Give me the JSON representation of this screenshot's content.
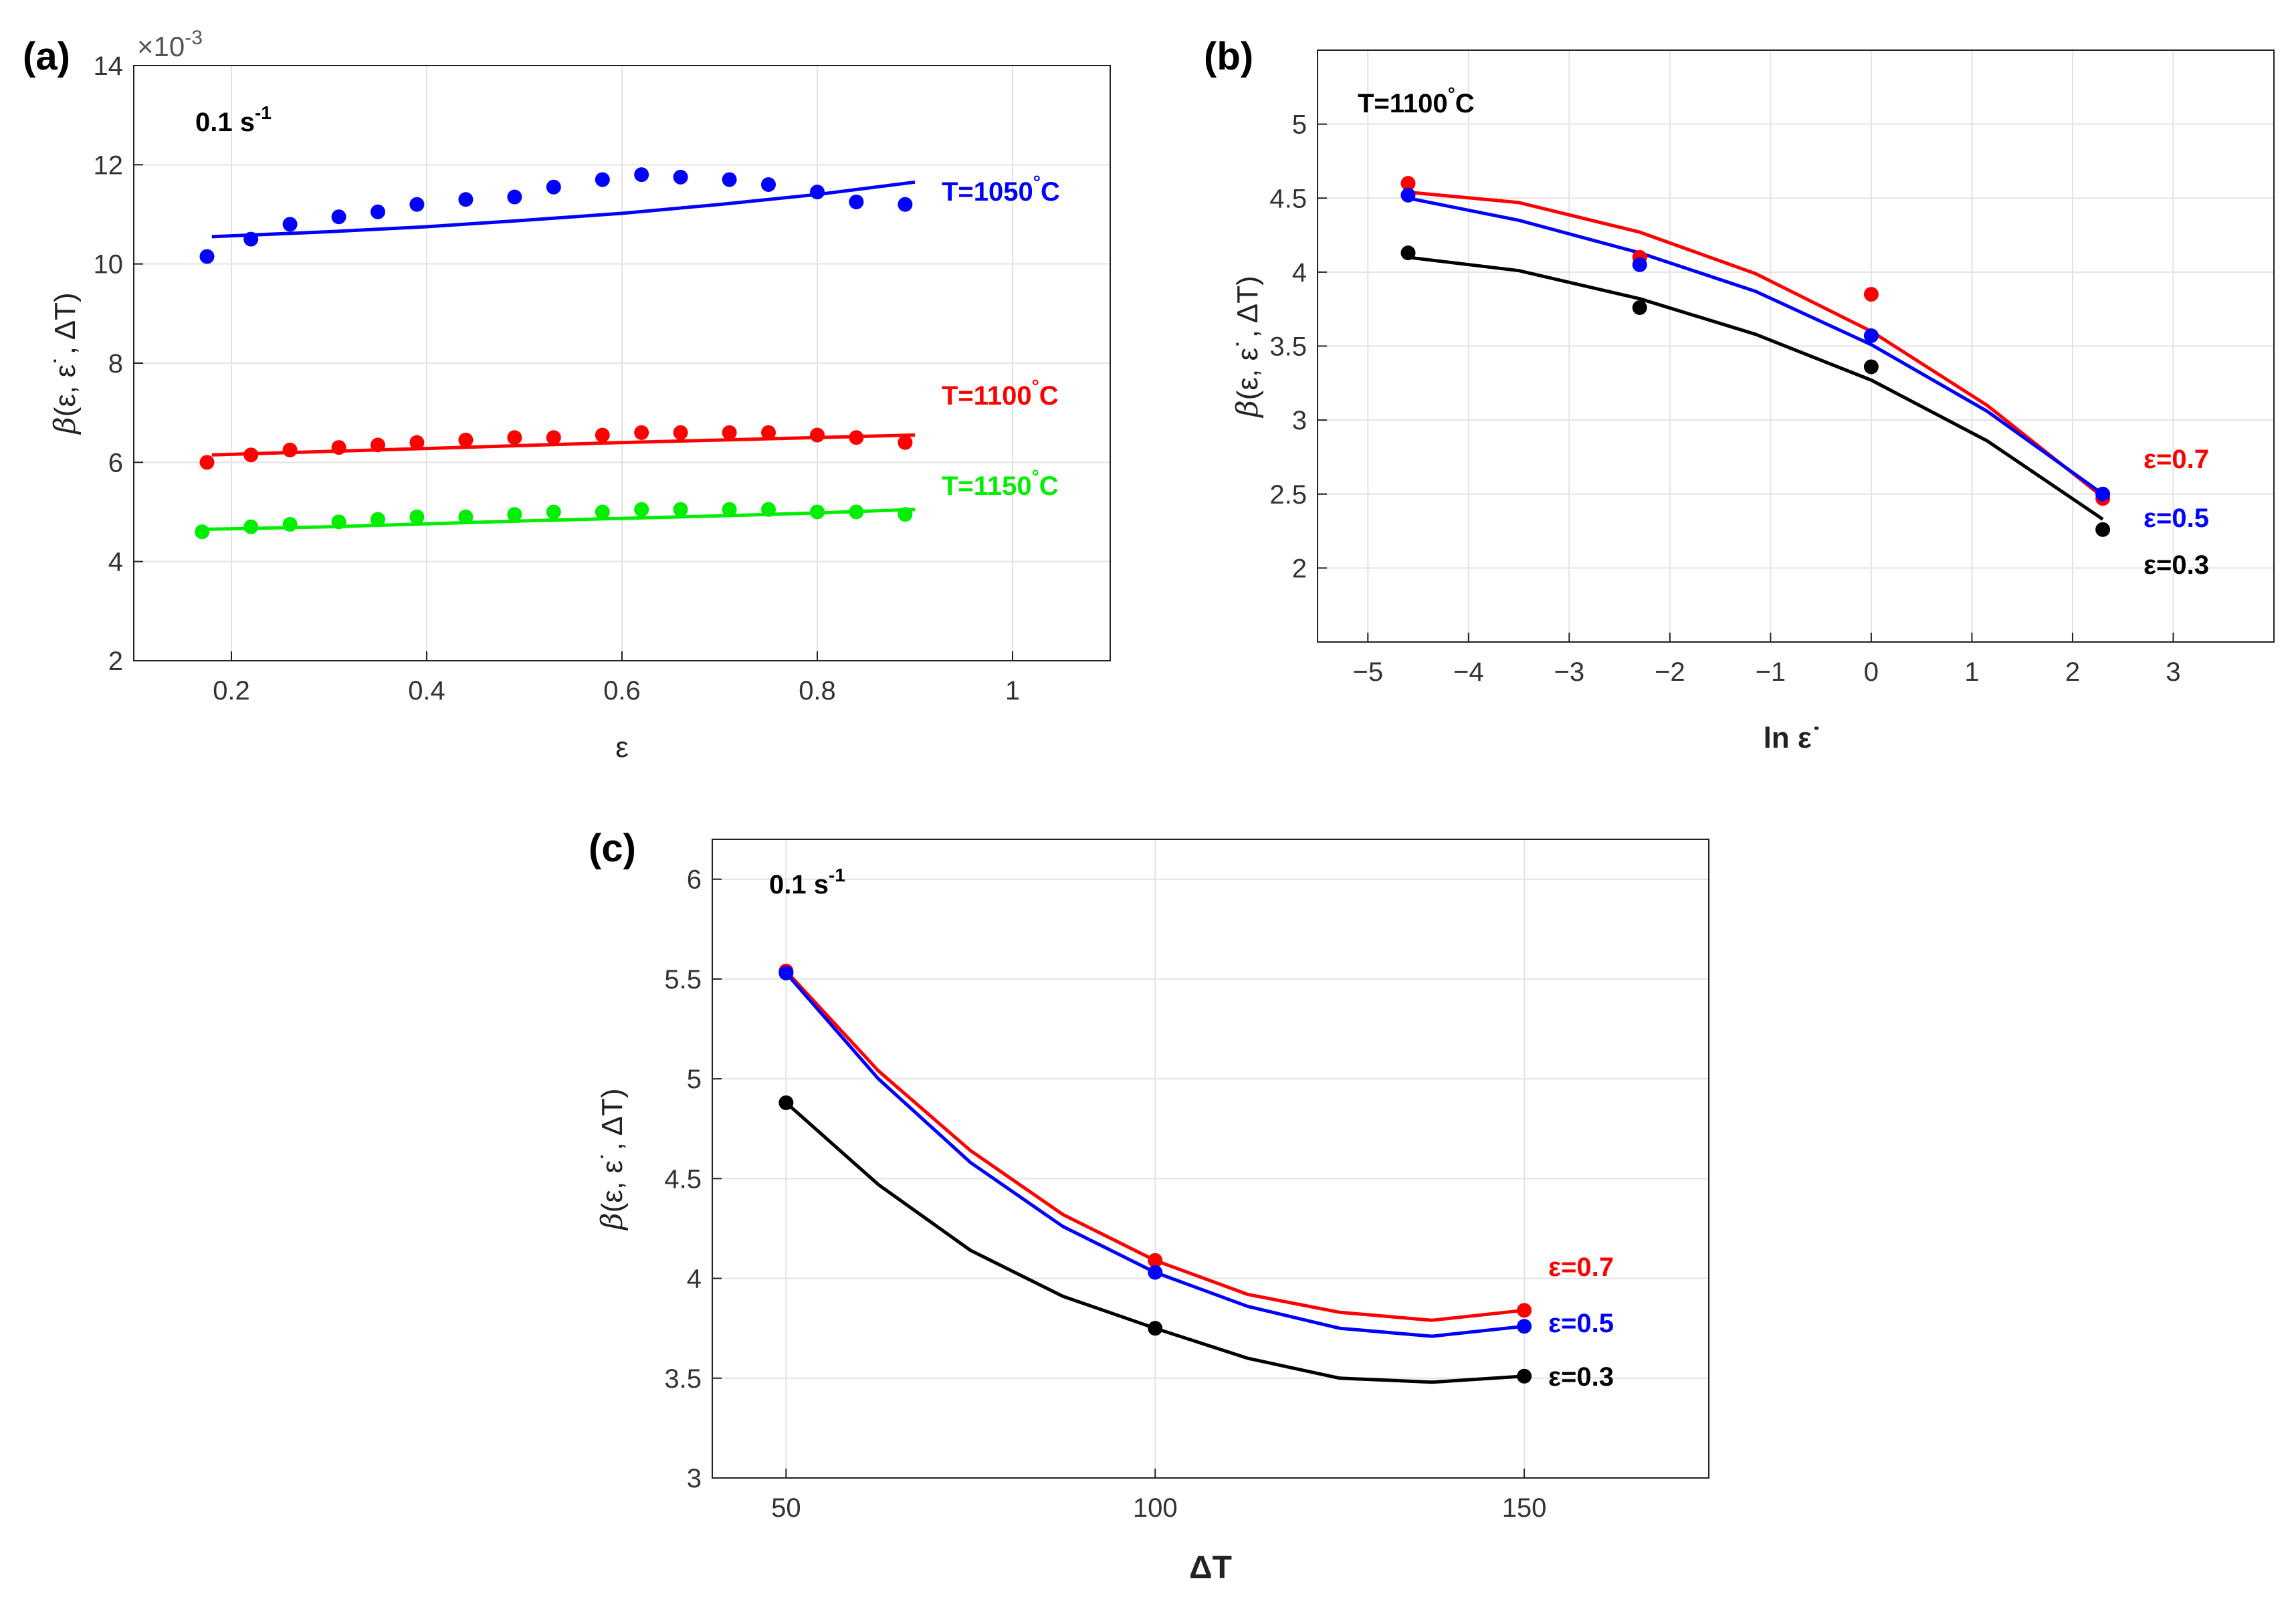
{
  "chart_data": [
    {
      "id": "a",
      "type": "scatter",
      "panel_label": "(a)",
      "rate_label": "0.1 s",
      "rate_exp": "-1",
      "xlabel": "ε",
      "ylabel_beta": "β",
      "ylabel_rest": "(ε, ε˙, ΔT)",
      "exponent_label": "×10",
      "exponent_power": "-3",
      "xlim": [
        0.1,
        1.1
      ],
      "ylim": [
        2,
        14
      ],
      "xticks": [
        0.2,
        0.4,
        0.6,
        0.8,
        1
      ],
      "xtick_labels": [
        "0.2",
        "0.4",
        "0.6",
        "0.8",
        "1"
      ],
      "yticks": [
        2,
        4,
        6,
        8,
        10,
        12,
        14
      ],
      "ytick_labels": [
        "2",
        "4",
        "6",
        "8",
        "10",
        "12",
        "14"
      ],
      "series": [
        {
          "name": "T=1050°C",
          "label_main": "T=1050",
          "label_unit": "C",
          "color": "#0000ff",
          "x": [
            0.175,
            0.22,
            0.26,
            0.31,
            0.35,
            0.39,
            0.44,
            0.49,
            0.53,
            0.58,
            0.62,
            0.66,
            0.71,
            0.75,
            0.8,
            0.84,
            0.89
          ],
          "y": [
            10.15,
            10.5,
            10.8,
            10.95,
            11.05,
            11.2,
            11.3,
            11.35,
            11.55,
            11.7,
            11.8,
            11.75,
            11.7,
            11.6,
            11.45,
            11.25,
            11.2
          ],
          "fit_x": [
            0.18,
            0.3,
            0.4,
            0.5,
            0.6,
            0.7,
            0.8,
            0.9
          ],
          "fit_y": [
            10.55,
            10.65,
            10.75,
            10.88,
            11.02,
            11.2,
            11.4,
            11.65
          ]
        },
        {
          "name": "T=1100°C",
          "label_main": "T=1100",
          "label_unit": "C",
          "color": "#ff0000",
          "x": [
            0.175,
            0.22,
            0.26,
            0.31,
            0.35,
            0.39,
            0.44,
            0.49,
            0.53,
            0.58,
            0.62,
            0.66,
            0.71,
            0.75,
            0.8,
            0.84,
            0.89
          ],
          "y": [
            6.0,
            6.15,
            6.25,
            6.3,
            6.35,
            6.4,
            6.45,
            6.5,
            6.5,
            6.55,
            6.6,
            6.6,
            6.6,
            6.6,
            6.55,
            6.5,
            6.4
          ],
          "fit_x": [
            0.18,
            0.3,
            0.4,
            0.5,
            0.6,
            0.7,
            0.8,
            0.9
          ],
          "fit_y": [
            6.15,
            6.22,
            6.28,
            6.34,
            6.4,
            6.45,
            6.5,
            6.55
          ]
        },
        {
          "name": "T=1150°C",
          "label_main": "T=1150",
          "label_unit": "C",
          "color": "#00ee00",
          "x": [
            0.17,
            0.22,
            0.26,
            0.31,
            0.35,
            0.39,
            0.44,
            0.49,
            0.53,
            0.58,
            0.62,
            0.66,
            0.71,
            0.75,
            0.8,
            0.84,
            0.89
          ],
          "y": [
            4.6,
            4.7,
            4.75,
            4.8,
            4.85,
            4.9,
            4.9,
            4.95,
            5.0,
            5.0,
            5.05,
            5.05,
            5.05,
            5.05,
            5.0,
            5.0,
            4.95
          ],
          "fit_x": [
            0.17,
            0.3,
            0.4,
            0.5,
            0.6,
            0.7,
            0.8,
            0.9
          ],
          "fit_y": [
            4.65,
            4.7,
            4.76,
            4.82,
            4.87,
            4.92,
            4.98,
            5.05
          ]
        }
      ]
    },
    {
      "id": "b",
      "type": "scatter",
      "panel_label": "(b)",
      "temp_label": "T=1100",
      "temp_unit": "C",
      "xlabel": "ln ε˙",
      "ylabel_beta": "β",
      "ylabel_rest": "(ε, ε˙, ΔT)",
      "xlim": [
        -5.5,
        4
      ],
      "ylim": [
        1.5,
        5.5
      ],
      "xticks": [
        -5,
        -4,
        -3,
        -2,
        -1,
        0,
        1,
        2,
        3
      ],
      "xtick_labels": [
        "−5",
        "−4",
        "−3",
        "−2",
        "−1",
        "0",
        "1",
        "2",
        "3"
      ],
      "yticks": [
        2,
        2.5,
        3,
        3.5,
        4,
        4.5,
        5
      ],
      "ytick_labels": [
        "2",
        "2.5",
        "3",
        "3.5",
        "4",
        "4.5",
        "5"
      ],
      "series": [
        {
          "name": "ε=0.7",
          "color": "#ff0000",
          "x": [
            -4.6,
            -2.3,
            0,
            2.3
          ],
          "y": [
            4.6,
            4.1,
            3.85,
            2.47
          ],
          "fit_x": [
            -4.6,
            -3.5,
            -2.3,
            -1.15,
            0,
            1.15,
            2.3
          ],
          "fit_y": [
            4.54,
            4.47,
            4.27,
            3.99,
            3.6,
            3.1,
            2.48
          ]
        },
        {
          "name": "ε=0.5",
          "color": "#0000ff",
          "x": [
            -4.6,
            -2.3,
            0,
            2.3
          ],
          "y": [
            4.52,
            4.05,
            3.57,
            2.5
          ],
          "fit_x": [
            -4.6,
            -3.5,
            -2.3,
            -1.15,
            0,
            1.15,
            2.3
          ],
          "fit_y": [
            4.5,
            4.35,
            4.13,
            3.87,
            3.51,
            3.06,
            2.5
          ]
        },
        {
          "name": "ε=0.3",
          "color": "#000000",
          "x": [
            -4.6,
            -2.3,
            0,
            2.3
          ],
          "y": [
            4.13,
            3.76,
            3.36,
            2.26
          ],
          "fit_x": [
            -4.6,
            -3.5,
            -2.3,
            -1.15,
            0,
            1.15,
            2.3
          ],
          "fit_y": [
            4.1,
            4.01,
            3.82,
            3.58,
            3.27,
            2.86,
            2.33
          ]
        }
      ]
    },
    {
      "id": "c",
      "type": "scatter",
      "panel_label": "(c)",
      "rate_label": "0.1 s",
      "rate_exp": "-1",
      "xlabel": "ΔT",
      "ylabel_beta": "β",
      "ylabel_rest": "(ε, ε˙, ΔT)",
      "xlim": [
        40,
        175
      ],
      "ylim": [
        3,
        6.2
      ],
      "xticks": [
        50,
        100,
        150
      ],
      "xtick_labels": [
        "50",
        "100",
        "150"
      ],
      "yticks": [
        3,
        3.5,
        4,
        4.5,
        5,
        5.5,
        6
      ],
      "ytick_labels": [
        "3",
        "3.5",
        "4",
        "4.5",
        "5",
        "5.5",
        "6"
      ],
      "series": [
        {
          "name": "ε=0.7",
          "color": "#ff0000",
          "x": [
            50,
            100,
            150
          ],
          "y": [
            5.54,
            4.09,
            3.84
          ],
          "fit_x": [
            50,
            62.5,
            75,
            87.5,
            100,
            112.5,
            125,
            137.5,
            150
          ],
          "fit_y": [
            5.54,
            5.04,
            4.64,
            4.32,
            4.09,
            3.92,
            3.83,
            3.79,
            3.84
          ]
        },
        {
          "name": "ε=0.5",
          "color": "#0000ff",
          "x": [
            50,
            100,
            150
          ],
          "y": [
            5.53,
            4.03,
            3.76
          ],
          "fit_x": [
            50,
            62.5,
            75,
            87.5,
            100,
            112.5,
            125,
            137.5,
            150
          ],
          "fit_y": [
            5.53,
            5.0,
            4.58,
            4.26,
            4.03,
            3.86,
            3.75,
            3.71,
            3.76
          ]
        },
        {
          "name": "ε=0.3",
          "color": "#000000",
          "x": [
            50,
            100,
            150
          ],
          "y": [
            4.88,
            3.75,
            3.51
          ],
          "fit_x": [
            50,
            62.5,
            75,
            87.5,
            100,
            112.5,
            125,
            137.5,
            150
          ],
          "fit_y": [
            4.88,
            4.47,
            4.14,
            3.91,
            3.75,
            3.6,
            3.5,
            3.48,
            3.51
          ]
        }
      ]
    }
  ]
}
